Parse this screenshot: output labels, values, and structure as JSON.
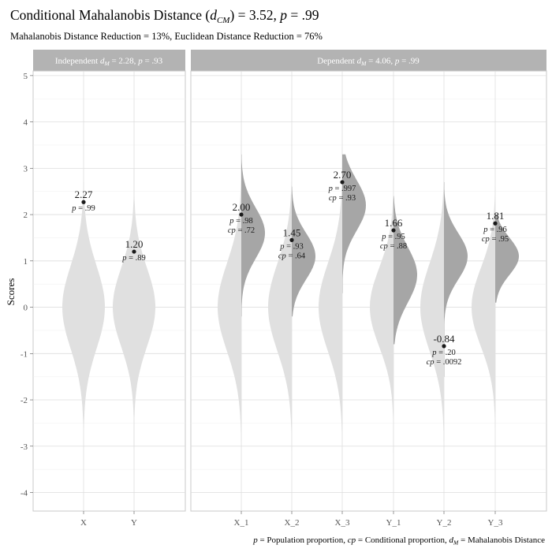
{
  "chart_data": {
    "type": "violin",
    "title_prefix": "Conditional Mahalanobis Distance (",
    "title_symbol": "d",
    "title_subscript": "CM",
    "title_suffix": ") = 3.52, ",
    "title_p_symbol": "p",
    "title_p_value": " = .99",
    "subtitle": "Mahalanobis Distance Reduction = 13%, Euclidean Distance Reduction = 76%",
    "ylabel": "Scores",
    "ylim": [
      -4.4,
      5.1
    ],
    "yticks": [
      "5",
      "4",
      "3",
      "2",
      "1",
      "0",
      "-1",
      "-2",
      "-3",
      "-4"
    ],
    "ytick_values": [
      5,
      4,
      3,
      2,
      1,
      0,
      -1,
      -2,
      -3,
      -4
    ],
    "panels": [
      {
        "strip_prefix": "Independent ",
        "strip_symbol": "d",
        "strip_subscript": "M",
        "strip_value": " = 2.28, ",
        "strip_p": "p",
        "strip_p_value": " = .93",
        "variables": [
          {
            "name": "X",
            "score": 2.27,
            "score_label": "2.27",
            "p": "= .99",
            "cp": null,
            "mean": 0,
            "sd": 0.9,
            "range": [
              -2.6,
              2.7
            ],
            "cond_mean": null,
            "cond_sd": null
          },
          {
            "name": "Y",
            "score": 1.2,
            "score_label": "1.20",
            "p": "= .89",
            "cp": null,
            "mean": 0,
            "sd": 0.85,
            "range": [
              -3.05,
              3.0
            ],
            "cond_mean": null,
            "cond_sd": null
          }
        ]
      },
      {
        "strip_prefix": "Dependent ",
        "strip_symbol": "d",
        "strip_subscript": "M",
        "strip_value": " = 4.06, ",
        "strip_p": "p",
        "strip_p_value": " = .99",
        "variables": [
          {
            "name": "X_1",
            "score": 2.0,
            "score_label": "2.00",
            "p": "= .98",
            "cp": "= .72",
            "mean": 0,
            "sd": 0.95,
            "range": [
              -2.9,
              3.6
            ],
            "cond_mean": 1.6,
            "cond_sd": 0.55,
            "cond_range": [
              -0.2,
              3.3
            ]
          },
          {
            "name": "X_2",
            "score": 1.45,
            "score_label": "1.45",
            "p": "= .93",
            "cp": "= .64",
            "mean": 0,
            "sd": 0.95,
            "range": [
              -3.1,
              3.8
            ],
            "cond_mean": 1.1,
            "cond_sd": 0.5,
            "cond_range": [
              -0.2,
              2.6
            ]
          },
          {
            "name": "X_3",
            "score": 2.7,
            "score_label": "2.70",
            "p": "= .997",
            "cp": "= .93",
            "mean": 0,
            "sd": 0.95,
            "range": [
              -3.3,
              3.45
            ],
            "cond_mean": 2.2,
            "cond_sd": 0.55,
            "cond_range": [
              0.3,
              3.3
            ]
          },
          {
            "name": "Y_1",
            "score": 1.66,
            "score_label": "1.66",
            "p": "= .95",
            "cp": "= .88",
            "mean": 0,
            "sd": 0.85,
            "range": [
              -3.15,
              2.75
            ],
            "cond_mean": 0.7,
            "cond_sd": 0.6,
            "cond_range": [
              -0.8,
              2.4
            ]
          },
          {
            "name": "Y_2",
            "score": -0.84,
            "score_label": "-0.84",
            "p": "= .20",
            "cp": "= .0092",
            "mean": 0,
            "sd": 0.95,
            "range": [
              -2.9,
              3.3
            ],
            "cond_mean": 1.1,
            "cond_sd": 0.5,
            "cond_range": [
              -1.5,
              2.7
            ]
          },
          {
            "name": "Y_3",
            "score": 1.81,
            "score_label": "1.81",
            "p": "= .96",
            "cp": "= .95",
            "mean": 0,
            "sd": 0.85,
            "range": [
              -2.6,
              2.6
            ],
            "cond_mean": 1.1,
            "cond_sd": 0.4,
            "cond_range": [
              0.1,
              2.0
            ]
          }
        ]
      }
    ],
    "footnote": {
      "p_symbol": "p",
      "p_text": " = Population proportion, ",
      "cp_symbol": "cp",
      "cp_text": " = Conditional proportion, ",
      "d_symbol": "d",
      "d_subscript": "M",
      "d_text": " = Mahalanobis Distance"
    }
  }
}
